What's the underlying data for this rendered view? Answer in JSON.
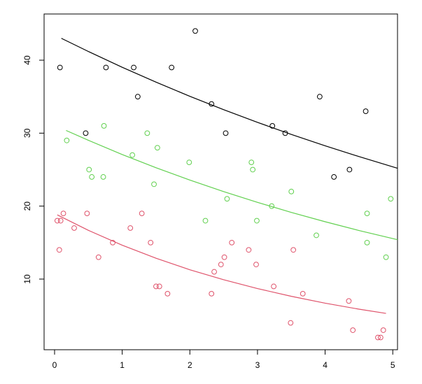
{
  "chart_data": {
    "type": "scatter",
    "xlim": [
      -0.155,
      5.07
    ],
    "ylim": [
      0.32,
      46.33
    ],
    "xticks": [
      0,
      1,
      2,
      3,
      4,
      5
    ],
    "yticks": [
      10,
      20,
      30,
      40
    ],
    "series": [
      {
        "type": "scatter",
        "color": "#000000",
        "x": [
          0.08,
          0.46,
          0.76,
          1.17,
          1.23,
          1.73,
          2.08,
          2.32,
          2.53,
          3.22,
          3.41,
          3.92,
          4.13,
          4.36,
          4.6
        ],
        "values": [
          39,
          30,
          39,
          39,
          35,
          39,
          44,
          34,
          30,
          31,
          30,
          35,
          24,
          25,
          33
        ]
      },
      {
        "type": "scatter",
        "color": "#61D04F",
        "x": [
          0.18,
          0.51,
          0.55,
          0.73,
          0.72,
          1.15,
          1.37,
          1.47,
          1.52,
          1.99,
          2.23,
          2.55,
          2.91,
          2.93,
          3.21,
          2.99,
          3.5,
          3.87,
          4.62,
          4.62,
          4.9,
          4.97
        ],
        "values": [
          29,
          25,
          24,
          31,
          24,
          27,
          30,
          23,
          28,
          26,
          18,
          21,
          26,
          25,
          20,
          18,
          22,
          16,
          19,
          15,
          13,
          21
        ]
      },
      {
        "type": "scatter",
        "color": "#DF536B",
        "x": [
          0.04,
          0.09,
          0.13,
          0.07,
          0.29,
          0.48,
          0.65,
          0.86,
          1.12,
          1.29,
          1.42,
          1.5,
          1.55,
          1.67,
          2.32,
          2.36,
          2.46,
          2.51,
          2.62,
          2.87,
          2.98,
          3.24,
          3.49,
          3.53,
          3.67,
          4.35,
          4.41,
          4.78,
          4.82,
          4.86
        ],
        "values": [
          18,
          18,
          19,
          14,
          17,
          19,
          13,
          15,
          17,
          19,
          15,
          9,
          9,
          8,
          8,
          11,
          12,
          13,
          15,
          14,
          12,
          9,
          4,
          14,
          8,
          7,
          3,
          2,
          2,
          3
        ]
      },
      {
        "type": "line",
        "color": "#000000",
        "x": [
          0.1,
          0.5,
          1,
          1.5,
          2,
          2.5,
          3,
          3.5,
          4,
          4.5,
          5.07
        ],
        "values": [
          43.0,
          41.19,
          39.03,
          36.99,
          35.05,
          33.22,
          31.48,
          29.83,
          28.27,
          26.79,
          25.19
        ]
      },
      {
        "type": "line",
        "color": "#61D04F",
        "x": [
          0.17,
          0.5,
          1,
          1.5,
          2,
          2.5,
          3,
          3.5,
          4,
          4.5,
          5.07
        ],
        "values": [
          30.37,
          29.02,
          27.07,
          25.26,
          23.57,
          21.99,
          20.52,
          19.14,
          17.86,
          16.66,
          15.4
        ]
      },
      {
        "type": "line",
        "color": "#DF536B",
        "x": [
          0.04,
          0.5,
          1,
          1.5,
          2,
          2.5,
          3,
          3.5,
          4,
          4.5,
          4.9
        ],
        "values": [
          18.8,
          16.68,
          14.64,
          12.86,
          11.28,
          9.91,
          8.7,
          7.64,
          6.7,
          5.88,
          5.3
        ]
      }
    ]
  }
}
